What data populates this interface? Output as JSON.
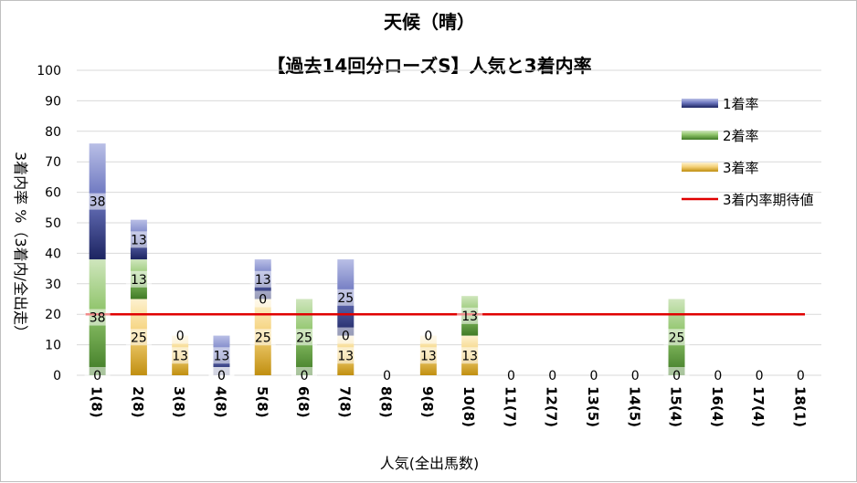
{
  "chart_data": {
    "type": "bar",
    "stacked": true,
    "title": "天候（晴）",
    "subtitle": "【過去14回分ローズS】人気と3着内率",
    "xlabel": "人気(全出馬数)",
    "ylabel": "3着内率 %（3着内/全出走）",
    "ylim": [
      0,
      100
    ],
    "yticks": [
      0,
      10,
      20,
      30,
      40,
      50,
      60,
      70,
      80,
      90,
      100
    ],
    "grid": true,
    "legend_position": "right",
    "categories": [
      "1(8)",
      "2(8)",
      "3(8)",
      "4(8)",
      "5(8)",
      "6(8)",
      "7(8)",
      "8(8)",
      "9(8)",
      "10(8)",
      "11(7)",
      "12(7)",
      "13(5)",
      "14(5)",
      "15(4)",
      "16(4)",
      "17(4)",
      "18(1)"
    ],
    "series": [
      {
        "name": "3着率",
        "color": "#c9a227",
        "values": [
          0,
          25,
          13,
          0,
          25,
          0,
          13,
          0,
          13,
          13,
          0,
          0,
          0,
          0,
          0,
          0,
          0,
          0
        ]
      },
      {
        "name": "2着率",
        "color": "#70ad47",
        "values": [
          38,
          13,
          0,
          0,
          0,
          25,
          0,
          0,
          0,
          13,
          0,
          0,
          0,
          0,
          25,
          0,
          0,
          0
        ]
      },
      {
        "name": "1着率",
        "color": "#2f3d8a",
        "values": [
          38,
          13,
          0,
          13,
          13,
          0,
          25,
          0,
          0,
          0,
          0,
          0,
          0,
          0,
          0,
          0,
          0,
          0
        ]
      }
    ],
    "reference_line": {
      "name": "3着内率期待値",
      "value": 20,
      "color": "#e00000"
    }
  }
}
